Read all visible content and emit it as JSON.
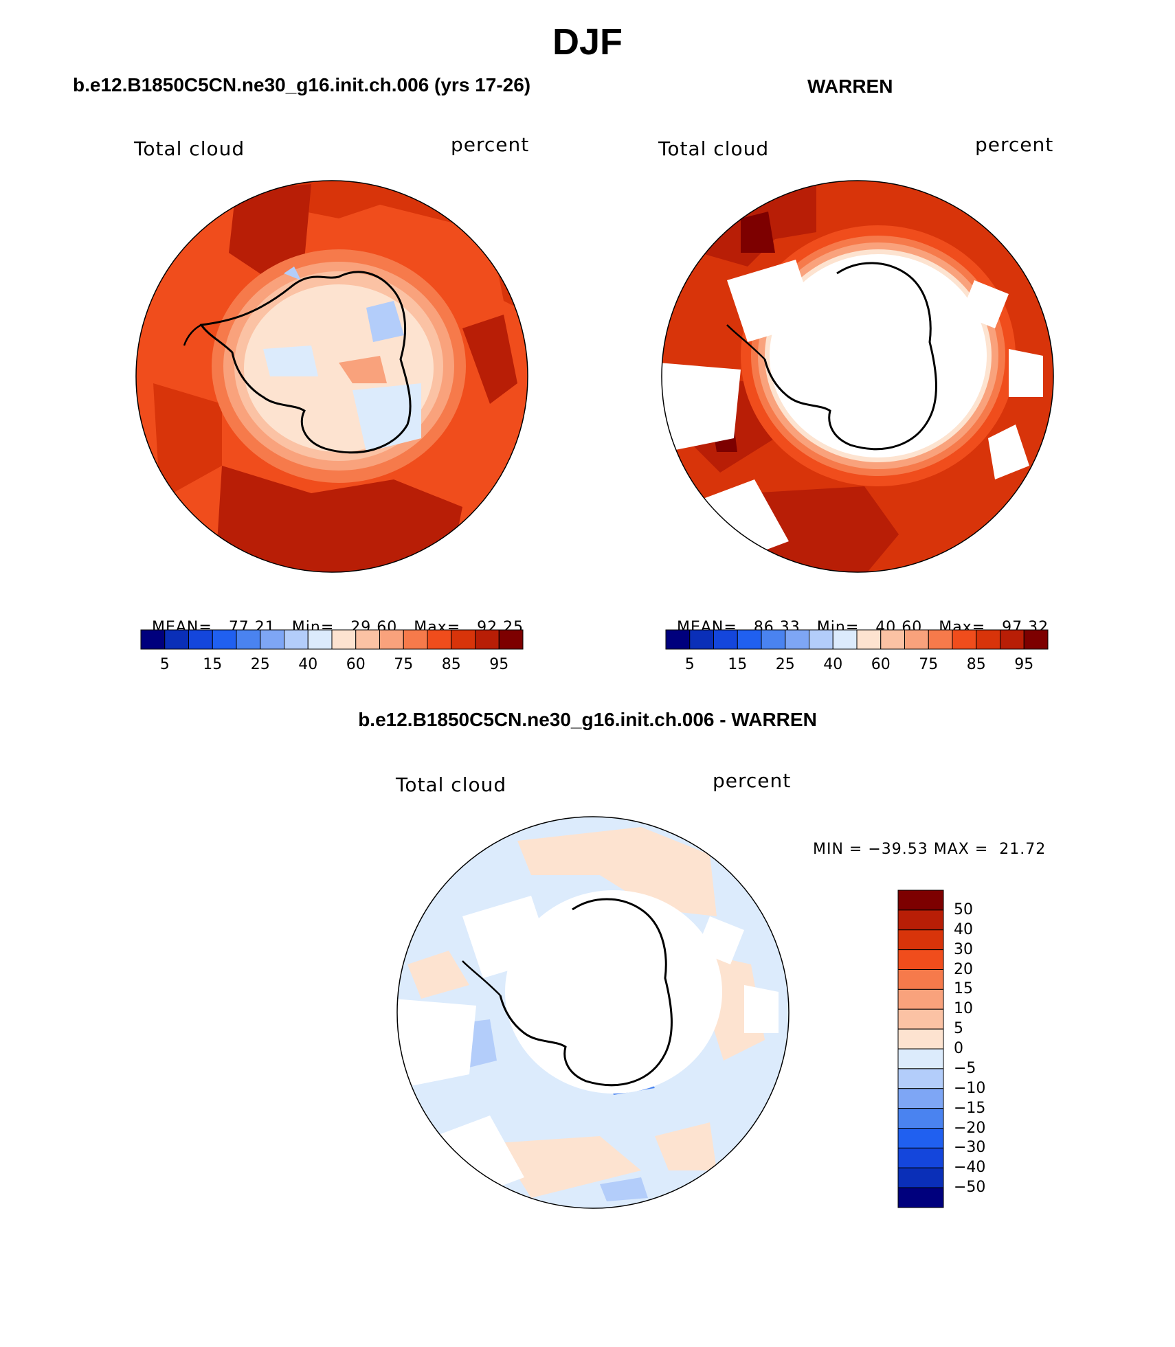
{
  "figure": {
    "season": "DJF",
    "panels": [
      {
        "title": "b.e12.B1850C5CN.ne30_g16.init.ch.006 (yrs 17-26)",
        "variable_label": "Total cloud",
        "units_label": "percent",
        "stats": {
          "mean_label": "MEAN=",
          "mean": "77.21",
          "min_label": "Min=",
          "min": "29.60",
          "max_label": "Max=",
          "max": "92.25"
        }
      },
      {
        "title": "WARREN",
        "variable_label": "Total cloud",
        "units_label": "percent",
        "stats": {
          "mean_label": "MEAN=",
          "mean": "86.33",
          "min_label": "Min=",
          "min": "40.60",
          "max_label": "Max=",
          "max": "97.32"
        }
      },
      {
        "title": "b.e12.B1850C5CN.ne30_g16.init.ch.006 - WARREN",
        "variable_label": "Total cloud",
        "units_label": "percent",
        "stats_text": "MIN = −39.53 MAX =  21.72"
      }
    ],
    "abs_colorbar": {
      "colors": [
        "#00007d",
        "#0a2fb8",
        "#1446dc",
        "#2060f0",
        "#4a83f0",
        "#7ea6f5",
        "#b3cdfa",
        "#dcebfc",
        "#fde3d0",
        "#fbc2a4",
        "#f9a27c",
        "#f67a4b",
        "#f04d1c",
        "#d8340a",
        "#b81e06",
        "#7d0000"
      ],
      "tick_labels": [
        "5",
        "15",
        "25",
        "40",
        "60",
        "75",
        "85",
        "95"
      ]
    },
    "diff_colorbar": {
      "colors": [
        "#7d0000",
        "#b81e06",
        "#d8340a",
        "#f04d1c",
        "#f67a4b",
        "#f9a27c",
        "#fbc2a4",
        "#fde3d0",
        "#dcebfc",
        "#b3cdfa",
        "#7ea6f5",
        "#4a83f0",
        "#2060f0",
        "#1446dc",
        "#0a2fb8",
        "#00007d"
      ],
      "tick_labels": [
        "50",
        "40",
        "30",
        "20",
        "15",
        "10",
        "5",
        "0",
        "−5",
        "−10",
        "−15",
        "−20",
        "−30",
        "−40",
        "−50"
      ]
    }
  }
}
